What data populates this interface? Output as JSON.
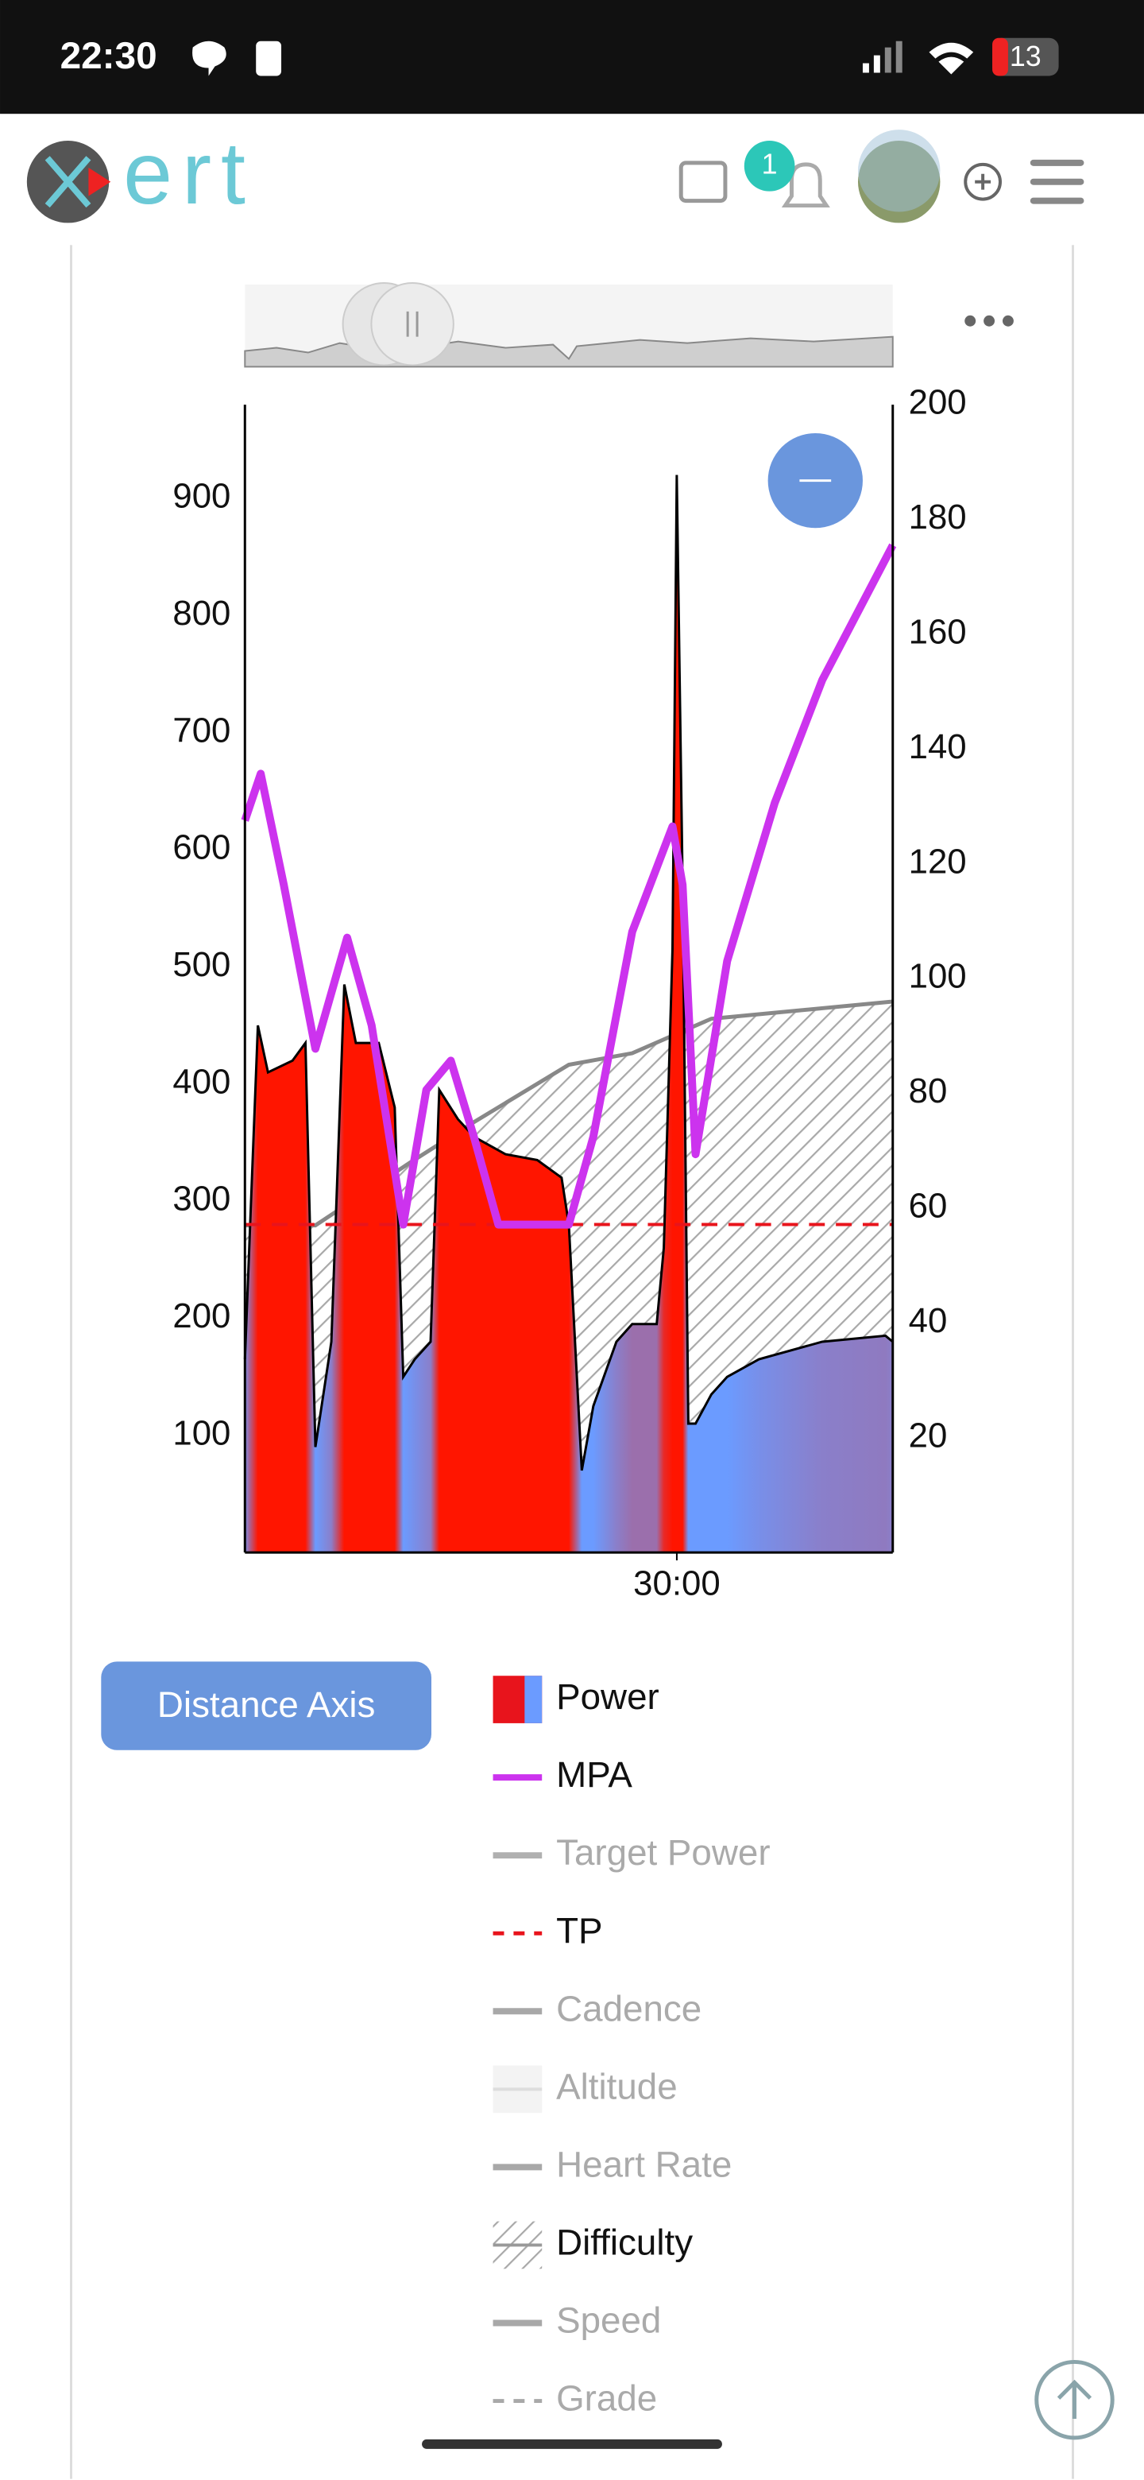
{
  "status_bar": {
    "time": "22:30",
    "battery": "13"
  },
  "header": {
    "logo": "ert",
    "notifications": "1"
  },
  "chart_data": {
    "type": "line",
    "xlim": [
      0,
      45
    ],
    "xticks": [
      {
        "value": 30,
        "label": "30:00"
      }
    ],
    "ylim": [
      0,
      980
    ],
    "yticks": [
      100,
      200,
      300,
      400,
      500,
      600,
      700,
      800,
      900
    ],
    "y2lim": [
      0,
      200
    ],
    "y2ticks": [
      20,
      40,
      60,
      80,
      100,
      120,
      140,
      160,
      180,
      200
    ],
    "tp": 280,
    "tp_color": "#e8141c",
    "series": [
      {
        "style": "hatch",
        "axis": "y2",
        "color": "#888888",
        "x": [
          0,
          4.9,
          11.5,
          15.9,
          22.5,
          26.9,
          32.4,
          45
        ],
        "values": [
          57,
          57,
          68,
          75,
          85,
          87,
          93,
          96
        ]
      },
      {
        "style": "power",
        "color": "#ff1500",
        "low_color": "#6b9bff",
        "x": [
          0,
          0.9,
          1.6,
          3.3,
          4.2,
          4.9,
          6,
          6.9,
          7.7,
          9.3,
          10.4,
          11,
          11.8,
          12.9,
          13.5,
          14.8,
          15.9,
          18.1,
          20.3,
          22,
          22.5,
          23.4,
          24.2,
          25.8,
          26.9,
          28.6,
          29.1,
          29.7,
          30,
          30.4,
          30.8,
          31.3,
          32.4,
          33.5,
          35.7,
          40.1,
          44.5,
          45
        ],
        "values": [
          165,
          450,
          410,
          420,
          435,
          90,
          180,
          485,
          435,
          435,
          380,
          150,
          165,
          180,
          395,
          370,
          355,
          340,
          335,
          320,
          280,
          70,
          125,
          180,
          195,
          195,
          260,
          515,
          920,
          570,
          110,
          110,
          135,
          150,
          165,
          180,
          185,
          180
        ]
      },
      {
        "style": "line",
        "color": "#cc33ee",
        "x": [
          0,
          1.1,
          2.7,
          4.9,
          7.1,
          8.8,
          11,
          12.6,
          14.3,
          15.9,
          17.6,
          22.5,
          24.2,
          26.9,
          29.7,
          30.4,
          31.3,
          33.5,
          36.8,
          40.1,
          45
        ],
        "values": [
          625,
          665,
          570,
          430,
          525,
          450,
          280,
          395,
          420,
          355,
          280,
          280,
          355,
          530,
          620,
          570,
          340,
          505,
          640,
          745,
          860
        ]
      }
    ]
  },
  "button": "Distance Axis",
  "legend": [
    {
      "name": "Power",
      "style": "bar",
      "color": "#e8141c",
      "enabled": true
    },
    {
      "name": "MPA",
      "style": "line",
      "color": "#cc33ee",
      "enabled": true
    },
    {
      "name": "Target Power",
      "style": "line",
      "color": "#b0b0b0",
      "enabled": false
    },
    {
      "name": "TP",
      "style": "dash",
      "color": "#e8141c",
      "enabled": true
    },
    {
      "name": "Cadence",
      "style": "line",
      "color": "#a8a8a8",
      "enabled": false
    },
    {
      "name": "Altitude",
      "style": "band",
      "color": "#dddddd",
      "enabled": false
    },
    {
      "name": "Heart Rate",
      "style": "line",
      "color": "#a8a8a8",
      "enabled": false
    },
    {
      "name": "Difficulty",
      "style": "hatch",
      "color": "#999999",
      "enabled": true
    },
    {
      "name": "Speed",
      "style": "line",
      "color": "#a8a8a8",
      "enabled": false
    },
    {
      "name": "Grade",
      "style": "dash",
      "color": "#a8a8a8",
      "enabled": false
    }
  ]
}
